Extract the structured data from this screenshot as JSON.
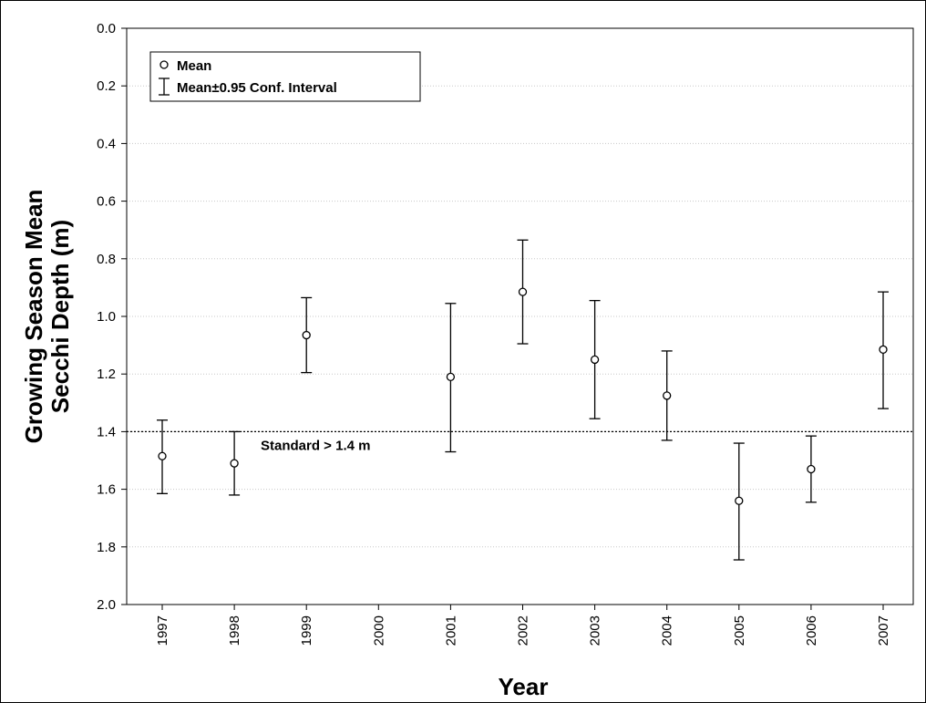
{
  "chart_data": {
    "type": "scatter",
    "title": "",
    "xlabel": "Year",
    "ylabel": [
      "Growing Season Mean",
      "Secchi Depth (m)"
    ],
    "categories": [
      "1997",
      "1998",
      "1999",
      "2000",
      "2001",
      "2002",
      "2003",
      "2004",
      "2005",
      "2006",
      "2007"
    ],
    "ylim": [
      0.0,
      2.0
    ],
    "y_inverted": true,
    "y_ticks": [
      "0.0",
      "0.2",
      "0.4",
      "0.6",
      "0.8",
      "1.0",
      "1.2",
      "1.4",
      "1.6",
      "1.8",
      "2.0"
    ],
    "grid": true,
    "legend_position": "top-left",
    "legend": {
      "mean_label": "Mean",
      "ci_label": "Mean±0.95 Conf. Interval"
    },
    "series": [
      {
        "name": "Mean",
        "points": [
          {
            "x": "1997",
            "mean": 1.485,
            "ci_low": 1.36,
            "ci_high": 1.615
          },
          {
            "x": "1998",
            "mean": 1.51,
            "ci_low": 1.4,
            "ci_high": 1.62
          },
          {
            "x": "1999",
            "mean": 1.065,
            "ci_low": 0.935,
            "ci_high": 1.195
          },
          {
            "x": "2001",
            "mean": 1.21,
            "ci_low": 0.955,
            "ci_high": 1.47
          },
          {
            "x": "2002",
            "mean": 0.915,
            "ci_low": 0.735,
            "ci_high": 1.095
          },
          {
            "x": "2003",
            "mean": 1.15,
            "ci_low": 0.945,
            "ci_high": 1.355
          },
          {
            "x": "2004",
            "mean": 1.275,
            "ci_low": 1.12,
            "ci_high": 1.43
          },
          {
            "x": "2005",
            "mean": 1.64,
            "ci_low": 1.44,
            "ci_high": 1.845
          },
          {
            "x": "2006",
            "mean": 1.53,
            "ci_low": 1.415,
            "ci_high": 1.645
          },
          {
            "x": "2007",
            "mean": 1.115,
            "ci_low": 0.915,
            "ci_high": 1.32
          }
        ]
      }
    ],
    "reference_line": {
      "value": 1.4,
      "label": "Standard > 1.4 m",
      "style": "dotted"
    }
  }
}
